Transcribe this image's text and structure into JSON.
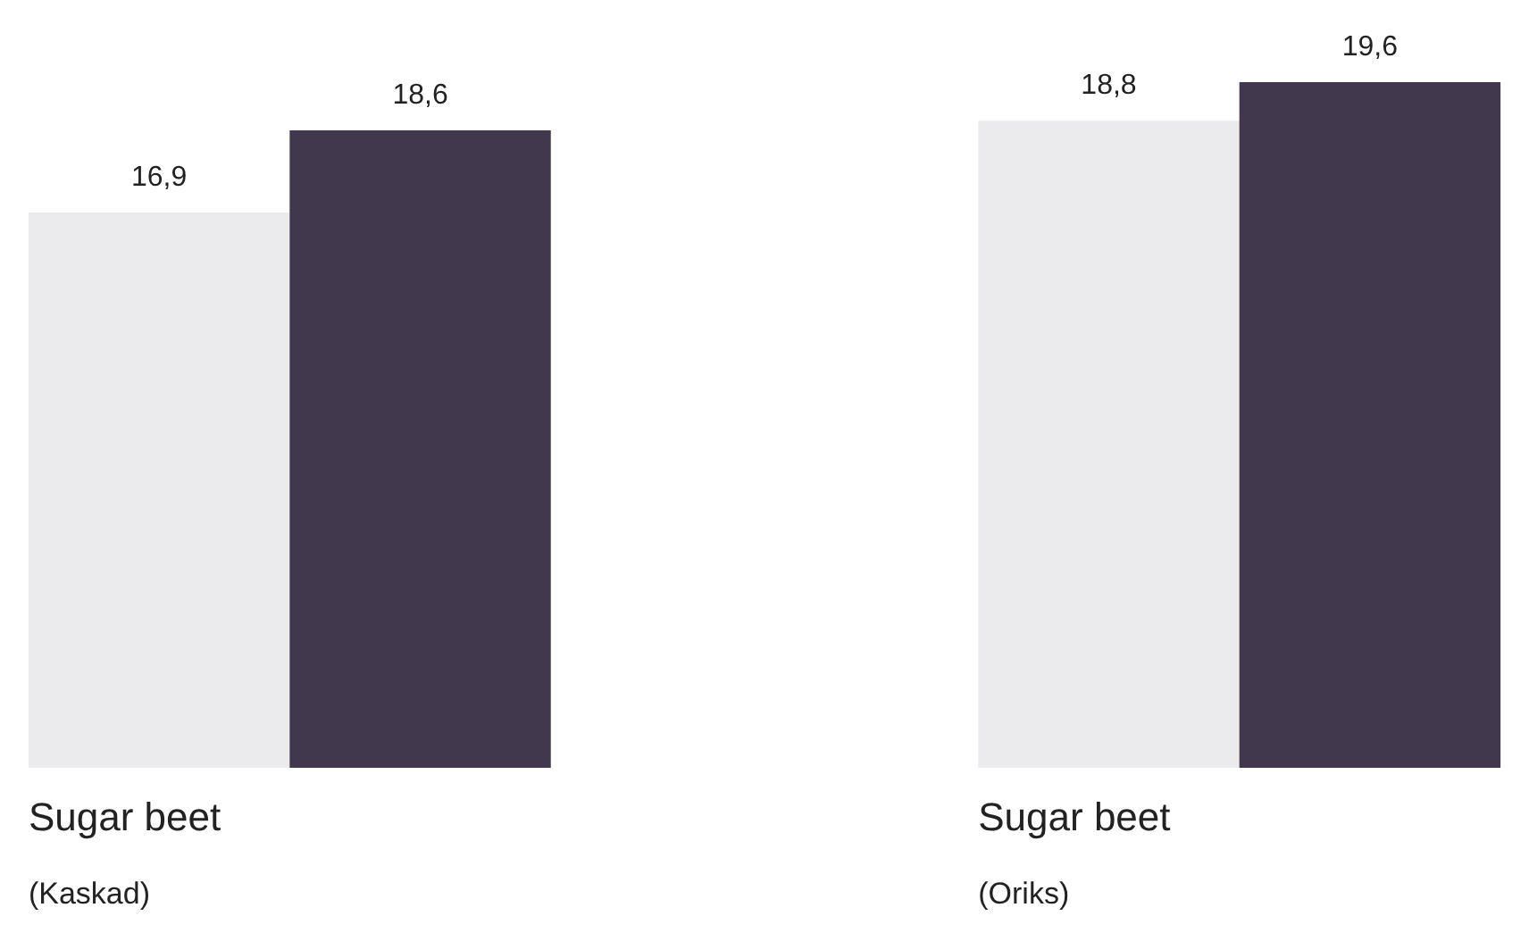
{
  "chart_data": {
    "type": "bar",
    "categories": [
      "Sugar beet\n(Kaskad)",
      "Sugar beet\n(Oriks)"
    ],
    "series": [
      {
        "color": "#ebeaed",
        "values": [
          16.9,
          18.8
        ],
        "value_labels": [
          "16,9",
          "18,8"
        ]
      },
      {
        "color": "#42384d",
        "values": [
          18.6,
          19.6
        ],
        "value_labels": [
          "18,6",
          "19,6"
        ]
      }
    ],
    "ylim": [
      5.4,
      21.3
    ]
  }
}
